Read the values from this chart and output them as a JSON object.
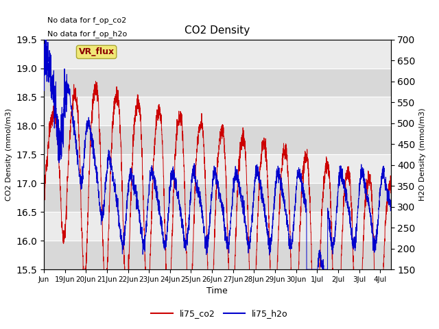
{
  "title": "CO2 Density",
  "xlabel": "Time",
  "ylabel_left": "CO2 Density (mmol/m3)",
  "ylabel_right": "H2O Density (mmol/m3)",
  "ylim_left": [
    15.5,
    19.5
  ],
  "ylim_right": [
    150,
    700
  ],
  "annotations": [
    "No data for f_op_co2",
    "No data for f_op_h2o"
  ],
  "vr_flux_label": "VR_flux",
  "legend_labels": [
    "li75_co2",
    "li75_h2o"
  ],
  "co2_color": "#cc0000",
  "h2o_color": "#0000cc",
  "background_color": "#ffffff",
  "plot_bg_light": "#ebebeb",
  "plot_bg_dark": "#d8d8d8",
  "grid_color": "#ffffff",
  "n_points": 3000
}
